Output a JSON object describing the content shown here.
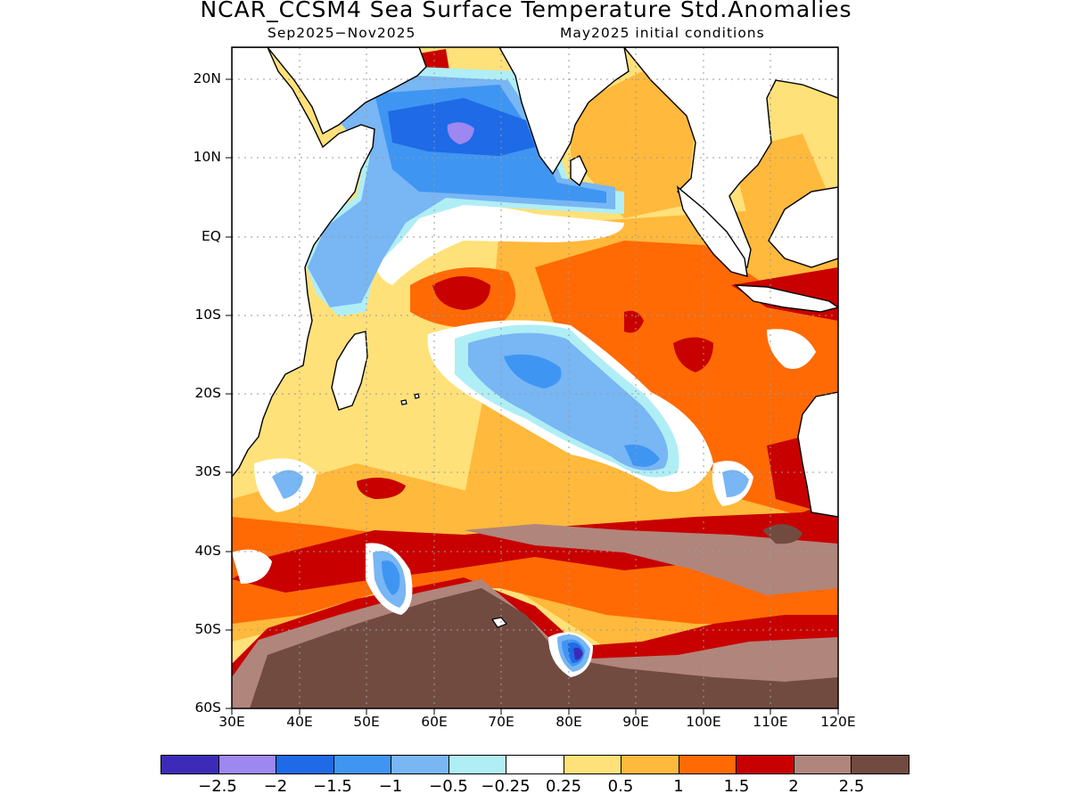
{
  "title": "NCAR_CCSM4 Sea Surface Temperature Std.Anomalies",
  "subtitle_left": "Sep2025-Nov2025",
  "subtitle_right": "May2025 initial conditions",
  "lat_ticks": [
    "20N",
    "10N",
    "EQ",
    "10S",
    "20S",
    "30S",
    "40S",
    "50S",
    "60S"
  ],
  "lon_ticks": [
    "30E",
    "40E",
    "50E",
    "60E",
    "70E",
    "80E",
    "90E",
    "100E",
    "110E",
    "120E"
  ],
  "colorbar": {
    "colors": [
      "#3d2bb8",
      "#9d87f0",
      "#1f6ae6",
      "#3f95f2",
      "#78b6f4",
      "#b0eef6",
      "#ffffff",
      "#ffe17a",
      "#ffb93c",
      "#ff6a05",
      "#c80000",
      "#b0857c",
      "#724b40"
    ],
    "labels": [
      "-2.5",
      "-2",
      "-1.5",
      "-1",
      "-0.5",
      "-0.25",
      "0.25",
      "0.5",
      "1",
      "1.5",
      "2",
      "2.5"
    ]
  },
  "map_colors": {
    "land": "#ffffff",
    "coast": "#000000",
    "grid": "#9a9a9a"
  }
}
